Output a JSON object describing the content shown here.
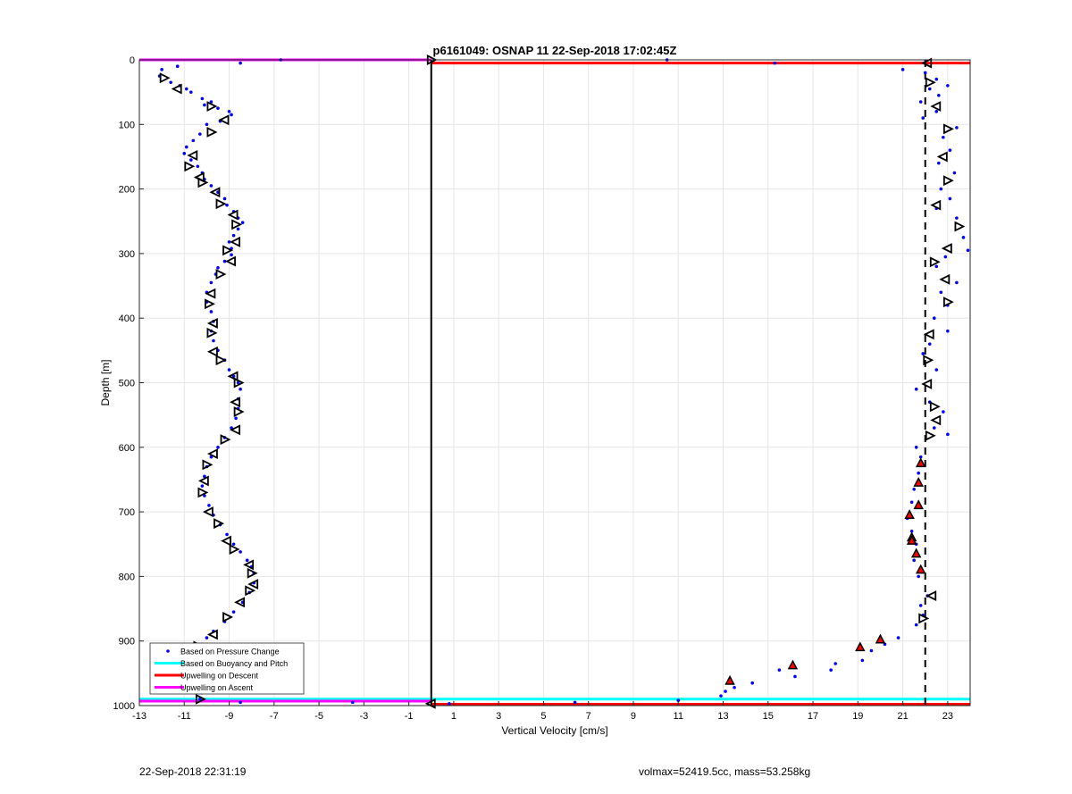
{
  "chart_data": {
    "type": "scatter",
    "title": "p6161049: OSNAP 11 22-Sep-2018 17:02:45Z",
    "xlabel": "Vertical Velocity [cm/s]",
    "ylabel": "Depth [m]",
    "xlim": [
      -13,
      24
    ],
    "ylim": [
      1000,
      0
    ],
    "y_reversed": true,
    "grid": true,
    "x_ticks": [
      -13,
      -11,
      -9,
      -7,
      -5,
      -3,
      -1,
      1,
      3,
      5,
      7,
      9,
      11,
      13,
      15,
      17,
      19,
      21,
      23
    ],
    "y_ticks": [
      0,
      100,
      200,
      300,
      400,
      500,
      600,
      700,
      800,
      900,
      1000
    ],
    "x_tick_labels": [
      "-13",
      "-11",
      "-9",
      "-7",
      "-5",
      "-3",
      "-1",
      "1",
      "3",
      "5",
      "7",
      "9",
      "11",
      "13",
      "15",
      "17",
      "19",
      "21",
      "23"
    ],
    "y_tick_labels": [
      "0",
      "100",
      "200",
      "300",
      "400",
      "500",
      "600",
      "700",
      "800",
      "900",
      "1000"
    ],
    "legend": {
      "placement": "bottom-left",
      "entries": [
        {
          "label": "Based on Pressure Change",
          "color": "#0000ff",
          "marker": "dot"
        },
        {
          "label": "Based on Buoyancy and Pitch",
          "color": "#00ffff",
          "marker": "line"
        },
        {
          "label": "Upwelling on Descent",
          "color": "#ff0000",
          "marker": "line"
        },
        {
          "label": "Upwelling on Ascent",
          "color": "#ff00ff",
          "marker": "line"
        }
      ]
    },
    "series": [
      {
        "name": "Based on Pressure Change",
        "color": "#0000ff",
        "points": [
          [
            -8.5,
            5
          ],
          [
            -6.7,
            0
          ],
          [
            -12,
            15
          ],
          [
            -11.3,
            10
          ],
          [
            -12.1,
            25
          ],
          [
            -11.6,
            35
          ],
          [
            -11.2,
            40
          ],
          [
            -10.9,
            45
          ],
          [
            -10.7,
            50
          ],
          [
            -10.2,
            60
          ],
          [
            -9.8,
            65
          ],
          [
            -10.1,
            70
          ],
          [
            -9.5,
            75
          ],
          [
            -9,
            80
          ],
          [
            -8.9,
            85
          ],
          [
            -9.4,
            95
          ],
          [
            -10,
            100
          ],
          [
            -10.3,
            115
          ],
          [
            -10.6,
            125
          ],
          [
            -10.9,
            135
          ],
          [
            -11,
            145
          ],
          [
            -10.7,
            155
          ],
          [
            -10.4,
            165
          ],
          [
            -10.2,
            175
          ],
          [
            -10.1,
            185
          ],
          [
            -9.8,
            195
          ],
          [
            -9.5,
            205
          ],
          [
            -9.2,
            215
          ],
          [
            -9.1,
            225
          ],
          [
            -8.8,
            235
          ],
          [
            -8.6,
            245
          ],
          [
            -8.4,
            252
          ],
          [
            -8.6,
            262
          ],
          [
            -8.8,
            272
          ],
          [
            -9,
            282
          ],
          [
            -8.9,
            292
          ],
          [
            -8.9,
            302
          ],
          [
            -9.2,
            312
          ],
          [
            -9.5,
            322
          ],
          [
            -9.6,
            332
          ],
          [
            -9.8,
            345
          ],
          [
            -10,
            360
          ],
          [
            -10,
            375
          ],
          [
            -9.8,
            390
          ],
          [
            -9.7,
            405
          ],
          [
            -9.8,
            420
          ],
          [
            -9.7,
            435
          ],
          [
            -9.5,
            450
          ],
          [
            -9.2,
            465
          ],
          [
            -9,
            480
          ],
          [
            -8.8,
            490
          ],
          [
            -8.6,
            500
          ],
          [
            -8.5,
            510
          ],
          [
            -8.6,
            525
          ],
          [
            -8.6,
            540
          ],
          [
            -8.7,
            555
          ],
          [
            -8.9,
            570
          ],
          [
            -9.2,
            585
          ],
          [
            -9.5,
            600
          ],
          [
            -9.8,
            615
          ],
          [
            -10,
            630
          ],
          [
            -10.1,
            645
          ],
          [
            -10.2,
            660
          ],
          [
            -10.1,
            675
          ],
          [
            -9.9,
            690
          ],
          [
            -9.7,
            705
          ],
          [
            -9.4,
            720
          ],
          [
            -9.1,
            735
          ],
          [
            -8.8,
            750
          ],
          [
            -8.5,
            762
          ],
          [
            -8.2,
            775
          ],
          [
            -8,
            785
          ],
          [
            -7.9,
            795
          ],
          [
            -7.9,
            810
          ],
          [
            -8.1,
            825
          ],
          [
            -8.4,
            840
          ],
          [
            -8.8,
            855
          ],
          [
            -9.2,
            870
          ],
          [
            -9.7,
            885
          ],
          [
            -10,
            895
          ],
          [
            -10.2,
            905
          ],
          [
            -10.4,
            920
          ],
          [
            -10.3,
            935
          ],
          [
            -10.2,
            950
          ],
          [
            -10.3,
            965
          ],
          [
            -10.5,
            980
          ],
          [
            -10.3,
            990
          ],
          [
            -8.5,
            995
          ],
          [
            -3.5,
            995
          ],
          [
            0.8,
            997
          ],
          [
            6.4,
            995
          ],
          [
            11,
            992
          ],
          [
            10.5,
            0
          ],
          [
            15.3,
            5
          ],
          [
            21,
            15
          ],
          [
            22,
            20
          ],
          [
            22.5,
            30
          ],
          [
            23,
            40
          ],
          [
            22.2,
            45
          ],
          [
            22.6,
            55
          ],
          [
            21.8,
            65
          ],
          [
            22.5,
            80
          ],
          [
            21.9,
            90
          ],
          [
            23.4,
            105
          ],
          [
            22.8,
            120
          ],
          [
            23.1,
            140
          ],
          [
            22.6,
            160
          ],
          [
            23.3,
            175
          ],
          [
            22.7,
            200
          ],
          [
            23.1,
            215
          ],
          [
            22.5,
            230
          ],
          [
            23.4,
            245
          ],
          [
            23.7,
            275
          ],
          [
            23.9,
            295
          ],
          [
            22.9,
            305
          ],
          [
            22.5,
            320
          ],
          [
            23.4,
            345
          ],
          [
            22.7,
            360
          ],
          [
            23,
            380
          ],
          [
            22.4,
            400
          ],
          [
            23,
            420
          ],
          [
            22.2,
            440
          ],
          [
            21.9,
            455
          ],
          [
            22.5,
            480
          ],
          [
            21.6,
            510
          ],
          [
            22.2,
            530
          ],
          [
            22.8,
            545
          ],
          [
            22.4,
            570
          ],
          [
            23,
            580
          ],
          [
            21.6,
            600
          ],
          [
            21.8,
            615
          ],
          [
            21.7,
            640
          ],
          [
            21.5,
            665
          ],
          [
            21.4,
            685
          ],
          [
            21.2,
            710
          ],
          [
            21.4,
            730
          ],
          [
            21.6,
            750
          ],
          [
            21.5,
            775
          ],
          [
            21.7,
            800
          ],
          [
            22.1,
            830
          ],
          [
            21.8,
            845
          ],
          [
            21.9,
            860
          ],
          [
            21.6,
            875
          ],
          [
            20.8,
            895
          ],
          [
            20.2,
            905
          ],
          [
            19.6,
            915
          ],
          [
            19.2,
            930
          ],
          [
            18,
            935
          ],
          [
            17.8,
            945
          ],
          [
            16.2,
            955
          ],
          [
            15.5,
            945
          ],
          [
            14.3,
            965
          ],
          [
            13.5,
            972
          ],
          [
            13.1,
            978
          ],
          [
            12.9,
            985
          ]
        ]
      },
      {
        "name": "Upwelling on Descent",
        "color": "#ff0000",
        "points": [
          [
            21.8,
            625
          ],
          [
            21.7,
            655
          ],
          [
            21.7,
            690
          ],
          [
            21.3,
            705
          ],
          [
            21.4,
            740
          ],
          [
            21.4,
            745
          ],
          [
            21.6,
            765
          ],
          [
            21.8,
            790
          ],
          [
            20,
            898
          ],
          [
            19.1,
            910
          ],
          [
            16.1,
            938
          ],
          [
            13.3,
            962
          ]
        ]
      },
      {
        "name": "Upwelling on Ascent",
        "color": "#ff00ff",
        "points": []
      }
    ],
    "open_markers": [
      [
        0,
        0
      ],
      [
        22.1,
        5
      ],
      [
        -11.9,
        28
      ],
      [
        -11.3,
        45
      ],
      [
        -9.8,
        72
      ],
      [
        -9.2,
        93
      ],
      [
        -9.8,
        112
      ],
      [
        -10.6,
        148
      ],
      [
        -10.8,
        165
      ],
      [
        -10.3,
        182
      ],
      [
        -10.2,
        190
      ],
      [
        -9.6,
        205
      ],
      [
        -9.4,
        223
      ],
      [
        -8.8,
        240
      ],
      [
        -8.7,
        255
      ],
      [
        -8.7,
        282
      ],
      [
        -9.1,
        295
      ],
      [
        -8.9,
        312
      ],
      [
        -9.4,
        332
      ],
      [
        -9.8,
        362
      ],
      [
        -9.9,
        378
      ],
      [
        -9.7,
        408
      ],
      [
        -9.8,
        423
      ],
      [
        -9.7,
        452
      ],
      [
        -9.4,
        465
      ],
      [
        -8.8,
        490
      ],
      [
        -8.6,
        500
      ],
      [
        -8.7,
        530
      ],
      [
        -8.6,
        545
      ],
      [
        -8.7,
        573
      ],
      [
        -9.2,
        588
      ],
      [
        -9.7,
        610
      ],
      [
        -10,
        627
      ],
      [
        -10.1,
        652
      ],
      [
        -10.2,
        670
      ],
      [
        -9.9,
        700
      ],
      [
        -9.5,
        718
      ],
      [
        -9.1,
        745
      ],
      [
        -8.8,
        758
      ],
      [
        -8.1,
        782
      ],
      [
        -8,
        795
      ],
      [
        -7.9,
        812
      ],
      [
        -8.1,
        822
      ],
      [
        -8.5,
        840
      ],
      [
        -9.1,
        863
      ],
      [
        -9.7,
        890
      ],
      [
        -10.4,
        908
      ],
      [
        -10.3,
        928
      ],
      [
        -10.2,
        962
      ],
      [
        -10.4,
        975
      ],
      [
        -10.3,
        990
      ],
      [
        0,
        997
      ],
      [
        22.2,
        35
      ],
      [
        22.5,
        72
      ],
      [
        23,
        107
      ],
      [
        22.8,
        150
      ],
      [
        23,
        187
      ],
      [
        22.5,
        225
      ],
      [
        23.5,
        258
      ],
      [
        23,
        292
      ],
      [
        22.4,
        313
      ],
      [
        22.9,
        340
      ],
      [
        23,
        375
      ],
      [
        22.2,
        425
      ],
      [
        22.1,
        465
      ],
      [
        22.1,
        502
      ],
      [
        22.4,
        537
      ],
      [
        22.5,
        558
      ],
      [
        22.2,
        582
      ],
      [
        22.3,
        830
      ],
      [
        21.9,
        865
      ]
    ],
    "vertical_lines": [
      {
        "x": 0,
        "style": "solid",
        "color": "#000000"
      },
      {
        "x": 22,
        "style": "dashed",
        "color": "#000000"
      }
    ],
    "horizontal_lines": [
      {
        "y": 0,
        "x_range": [
          -13,
          0
        ],
        "color": "#ff00ff"
      },
      {
        "y": 5,
        "x_range": [
          0,
          24
        ],
        "color": "#ff0000"
      },
      {
        "y": 990,
        "x_range": [
          -13,
          24
        ],
        "color": "#00ffff"
      },
      {
        "y": 993,
        "x_range": [
          -13,
          0
        ],
        "color": "#ff00ff"
      },
      {
        "y": 998,
        "x_range": [
          0,
          24
        ],
        "color": "#ff0000"
      }
    ]
  },
  "footer": {
    "left": "22-Sep-2018 22:31:19",
    "right": "volmax=52419.5cc, mass=53.258kg"
  }
}
